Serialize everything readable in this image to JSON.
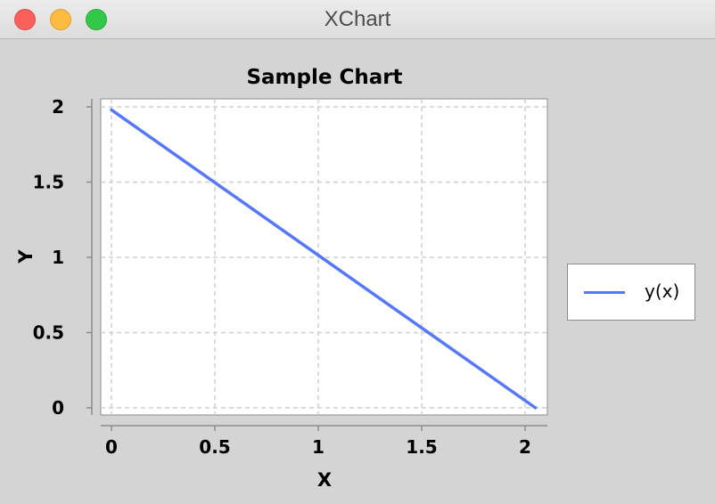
{
  "window": {
    "title": "XChart"
  },
  "colors": {
    "series": "#5677fc",
    "plot_background": "#ffffff",
    "chart_background": "#d4d4d4",
    "grid": "#cfcfcf"
  },
  "chart_data": {
    "type": "line",
    "title": "Sample Chart",
    "xlabel": "X",
    "ylabel": "Y",
    "xlim": [
      0,
      2
    ],
    "ylim": [
      0,
      2
    ],
    "xticks": [
      "0",
      "0.5",
      "1",
      "1.5",
      "2"
    ],
    "yticks": [
      "0",
      "0.5",
      "1",
      "1.5",
      "2"
    ],
    "grid": true,
    "legend_position": "right",
    "series": [
      {
        "name": "y(x)",
        "x": [
          0.0,
          2.05
        ],
        "y": [
          1.98,
          0.0
        ]
      }
    ]
  }
}
